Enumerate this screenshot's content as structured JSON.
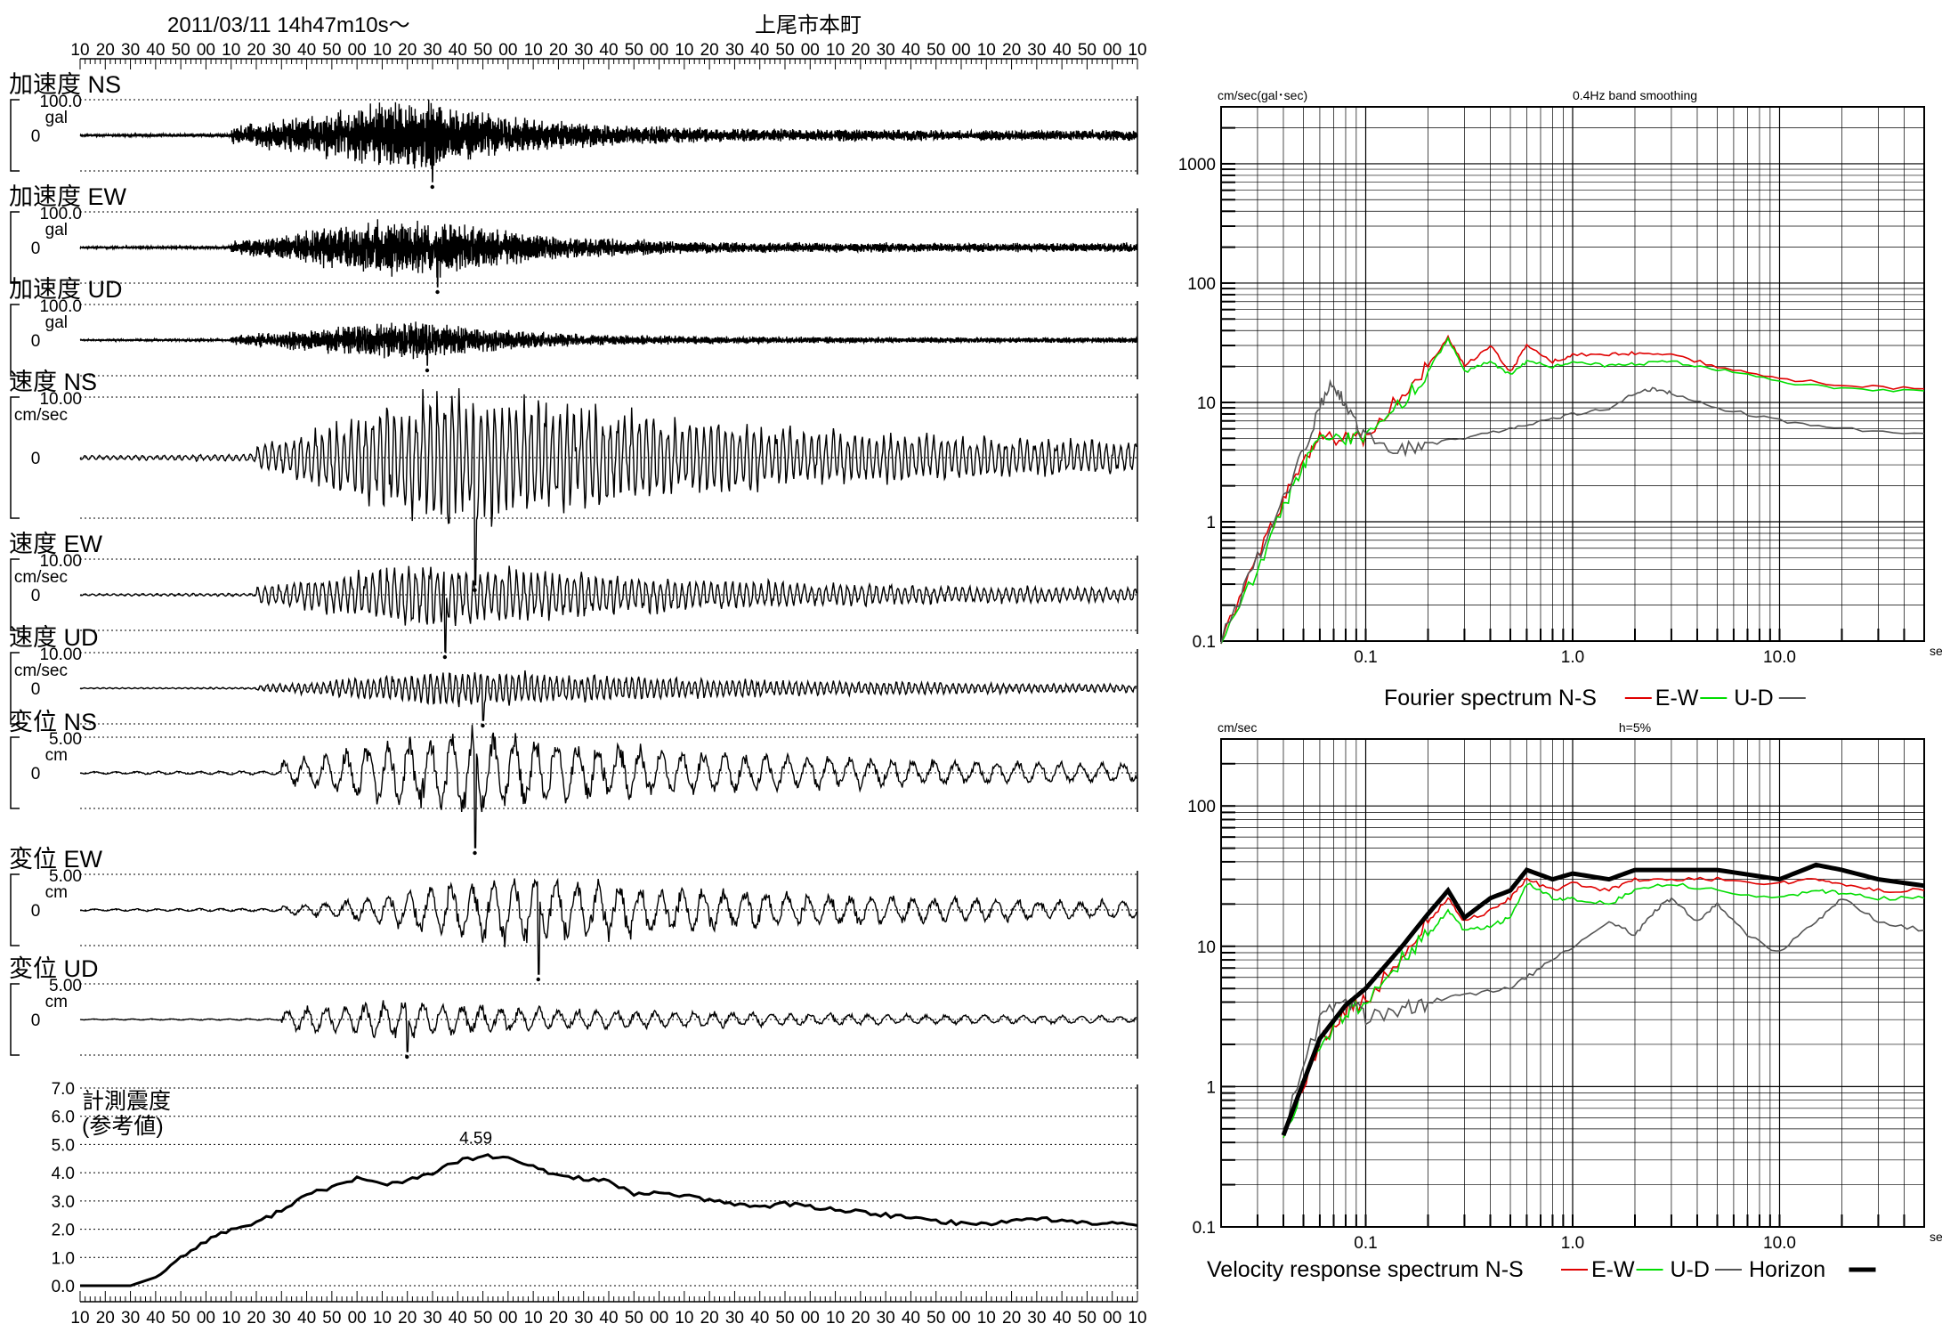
{
  "header": {
    "datetime": "2011/03/11  14h47m10s～",
    "station": "上尾市本町"
  },
  "time_ticks": [
    "10",
    "20",
    "30",
    "40",
    "50",
    "00",
    "10",
    "20",
    "30",
    "40",
    "50",
    "00",
    "10",
    "20",
    "30",
    "40",
    "50",
    "00",
    "10",
    "20",
    "30",
    "40",
    "50",
    "00",
    "10",
    "20",
    "30",
    "40",
    "50",
    "00",
    "10",
    "20",
    "30",
    "40",
    "50",
    "00",
    "10",
    "20",
    "30",
    "40",
    "50",
    "00",
    "10"
  ],
  "colors": {
    "ns": "#e00000",
    "ew": "#00dd00",
    "ud": "#555555",
    "horizon": "#000000",
    "grid": "#000000"
  },
  "chart_data": [
    {
      "type": "line",
      "id": "waveforms",
      "title": "",
      "x_ticks": [
        "10",
        "20",
        "30",
        "40",
        "50",
        "00",
        "10",
        "20",
        "30",
        "40",
        "50",
        "00",
        "10",
        "20",
        "30",
        "40",
        "50",
        "00",
        "10",
        "20",
        "30",
        "40",
        "50",
        "00",
        "10",
        "20",
        "30",
        "40",
        "50",
        "00",
        "10",
        "20",
        "30",
        "40",
        "50",
        "00",
        "10",
        "20",
        "30",
        "40",
        "50",
        "00",
        "10"
      ],
      "series": [
        {
          "name": "加速度 NS",
          "scale_label": "100.0",
          "unit": "gal",
          "zero_label": "0",
          "peak_sec": 140,
          "peak_amp": 1.3,
          "freq": 2.2,
          "onset": 60
        },
        {
          "name": "加速度 EW",
          "scale_label": "100.0",
          "unit": "gal",
          "zero_label": "0",
          "peak_sec": 142,
          "peak_amp": 1.1,
          "freq": 2.4,
          "onset": 60
        },
        {
          "name": "加速度 UD",
          "scale_label": "100.0",
          "unit": "gal",
          "zero_label": "0",
          "peak_sec": 138,
          "peak_amp": 0.7,
          "freq": 2.6,
          "onset": 60
        },
        {
          "name": "速度 NS",
          "scale_label": "10.00",
          "unit": "cm/sec",
          "zero_label": "0",
          "peak_sec": 157,
          "peak_amp": 2.1,
          "freq": 0.35,
          "onset": 70
        },
        {
          "name": "速度 EW",
          "scale_label": "10.00",
          "unit": "cm/sec",
          "zero_label": "0",
          "peak_sec": 145,
          "peak_amp": 1.6,
          "freq": 0.35,
          "onset": 70
        },
        {
          "name": "速度 UD",
          "scale_label": "10.00",
          "unit": "cm/sec",
          "zero_label": "0",
          "peak_sec": 160,
          "peak_amp": 0.9,
          "freq": 0.4,
          "onset": 70
        },
        {
          "name": "変位 NS",
          "scale_label": "5.00",
          "unit": "cm",
          "zero_label": "0",
          "peak_sec": 157,
          "peak_amp": 2.1,
          "freq": 0.12,
          "onset": 80
        },
        {
          "name": "変位 EW",
          "scale_label": "5.00",
          "unit": "cm",
          "zero_label": "0",
          "peak_sec": 182,
          "peak_amp": 1.8,
          "freq": 0.12,
          "onset": 80
        },
        {
          "name": "変位 UD",
          "scale_label": "5.00",
          "unit": "cm",
          "zero_label": "0",
          "peak_sec": 130,
          "peak_amp": 0.9,
          "freq": 0.13,
          "onset": 80
        }
      ]
    },
    {
      "type": "line",
      "id": "intensity",
      "title": "計測震度",
      "subtitle": "(参考値)",
      "y_ticks": [
        "7.0",
        "6.0",
        "5.0",
        "4.0",
        "3.0",
        "2.0",
        "1.0",
        "0.0"
      ],
      "ylim": [
        0,
        7
      ],
      "peak_label": "4.59",
      "t_sec": [
        0,
        10,
        20,
        30,
        40,
        50,
        60,
        70,
        80,
        90,
        100,
        110,
        120,
        130,
        140,
        150,
        160,
        170,
        180,
        190,
        200,
        210,
        220,
        230,
        240,
        250,
        260,
        270,
        280,
        290,
        300,
        310,
        320,
        330,
        340,
        350,
        360,
        370,
        380,
        390,
        400,
        410,
        420
      ],
      "values": [
        0,
        0,
        0,
        0.3,
        1.0,
        1.6,
        2.0,
        2.2,
        2.7,
        3.2,
        3.5,
        3.8,
        3.6,
        3.7,
        4.0,
        4.4,
        4.59,
        4.5,
        4.2,
        3.9,
        3.8,
        3.7,
        3.2,
        3.3,
        3.2,
        3.0,
        2.9,
        2.8,
        2.9,
        2.8,
        2.7,
        2.6,
        2.5,
        2.4,
        2.3,
        2.2,
        2.2,
        2.3,
        2.4,
        2.3,
        2.2,
        2.2,
        2.2
      ]
    },
    {
      "type": "line",
      "id": "fourier",
      "title": "Fourier spectrum  N-S",
      "title_labels": [
        "E-W",
        "U-D"
      ],
      "ylabel": "cm/sec(gal･sec)",
      "note": "0.4Hz band smoothing",
      "x_unit": "sec",
      "x_scale": "log",
      "y_scale": "log",
      "xlim": [
        0.02,
        50
      ],
      "ylim": [
        0.1,
        3000
      ],
      "x_tick_labels": [
        "0.1",
        "1.0",
        "10.0"
      ],
      "y_tick_labels": [
        "1000",
        "100",
        "10",
        "1",
        "0.1"
      ],
      "series": [
        {
          "name": "N-S",
          "x": [
            0.02,
            0.03,
            0.04,
            0.05,
            0.06,
            0.08,
            0.1,
            0.15,
            0.2,
            0.25,
            0.3,
            0.4,
            0.5,
            0.6,
            0.8,
            1,
            1.5,
            2,
            3,
            5,
            10,
            20,
            50
          ],
          "y": [
            0.1,
            0.5,
            1.5,
            3,
            5,
            5,
            5,
            12,
            20,
            35,
            20,
            30,
            18,
            30,
            22,
            25,
            25,
            26,
            25,
            20,
            16,
            14,
            13
          ]
        },
        {
          "name": "E-W",
          "x": [
            0.02,
            0.03,
            0.04,
            0.05,
            0.06,
            0.08,
            0.1,
            0.15,
            0.2,
            0.25,
            0.3,
            0.4,
            0.5,
            0.6,
            0.8,
            1,
            1.5,
            2,
            3,
            5,
            10,
            20,
            50
          ],
          "y": [
            0.1,
            0.4,
            1.3,
            3,
            5,
            5,
            5,
            10,
            18,
            35,
            18,
            22,
            17,
            22,
            20,
            22,
            20,
            21,
            22,
            19,
            15,
            13,
            12.5
          ]
        },
        {
          "name": "U-D",
          "x": [
            0.02,
            0.03,
            0.04,
            0.05,
            0.06,
            0.07,
            0.08,
            0.1,
            0.15,
            0.2,
            0.3,
            0.5,
            0.7,
            1,
            1.5,
            2,
            2.5,
            3,
            5,
            10,
            20,
            50
          ],
          "y": [
            0.1,
            0.5,
            1.5,
            4,
            9,
            15,
            9,
            5,
            4,
            4.5,
            5,
            6,
            7,
            8,
            9,
            12,
            13,
            12,
            9,
            7,
            6,
            5.5
          ]
        }
      ]
    },
    {
      "type": "line",
      "id": "response",
      "title": "Velocity response spectrum N-S",
      "title_labels": [
        "E-W",
        "U-D",
        "Horizon"
      ],
      "ylabel": "cm/sec",
      "note": "h=5%",
      "x_unit": "sec",
      "x_scale": "log",
      "y_scale": "log",
      "xlim": [
        0.02,
        50
      ],
      "ylim": [
        0.1,
        300
      ],
      "x_tick_labels": [
        "0.1",
        "1.0",
        "10.0"
      ],
      "y_tick_labels": [
        "100",
        "10",
        "1",
        "0.1"
      ],
      "series": [
        {
          "name": "N-S",
          "x": [
            0.04,
            0.06,
            0.08,
            0.1,
            0.15,
            0.2,
            0.25,
            0.3,
            0.4,
            0.5,
            0.6,
            0.8,
            1,
            1.5,
            2,
            3,
            5,
            10,
            15,
            20,
            30,
            50
          ],
          "y": [
            0.45,
            2,
            3.5,
            4,
            9,
            15,
            22,
            15,
            18,
            22,
            30,
            25,
            28,
            25,
            30,
            30,
            30,
            28,
            30,
            28,
            25,
            25
          ]
        },
        {
          "name": "E-W",
          "x": [
            0.04,
            0.06,
            0.08,
            0.1,
            0.15,
            0.2,
            0.25,
            0.3,
            0.4,
            0.5,
            0.6,
            0.8,
            1,
            1.5,
            2,
            3,
            5,
            10,
            15,
            20,
            30,
            50
          ],
          "y": [
            0.45,
            2,
            3.5,
            4,
            8,
            12,
            18,
            13,
            14,
            16,
            28,
            22,
            22,
            20,
            25,
            28,
            25,
            22,
            25,
            24,
            22,
            22
          ]
        },
        {
          "name": "U-D",
          "x": [
            0.04,
            0.06,
            0.08,
            0.1,
            0.15,
            0.2,
            0.3,
            0.5,
            0.7,
            1,
            1.5,
            2,
            2.5,
            3,
            4,
            5,
            7,
            10,
            15,
            20,
            30,
            50
          ],
          "y": [
            0.5,
            3,
            4.5,
            3,
            3.5,
            4,
            4.5,
            5,
            7,
            10,
            15,
            12,
            18,
            22,
            15,
            20,
            12,
            9,
            15,
            22,
            15,
            13
          ]
        },
        {
          "name": "Horizon",
          "x": [
            0.04,
            0.06,
            0.08,
            0.1,
            0.15,
            0.2,
            0.25,
            0.3,
            0.4,
            0.5,
            0.6,
            0.8,
            1,
            1.5,
            2,
            3,
            5,
            10,
            15,
            20,
            30,
            50
          ],
          "y": [
            0.45,
            2.2,
            3.8,
            5,
            10,
            17,
            25,
            16,
            22,
            25,
            35,
            30,
            33,
            30,
            35,
            35,
            35,
            30,
            38,
            35,
            30,
            27
          ]
        }
      ]
    }
  ]
}
